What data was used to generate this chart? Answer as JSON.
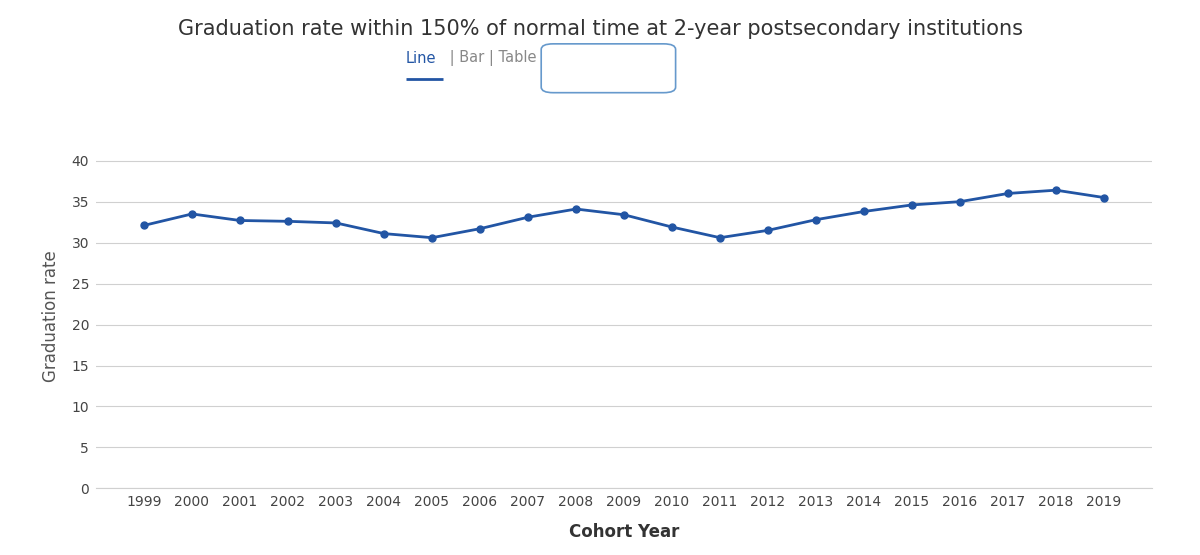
{
  "title": "Graduation rate within 150% of normal time at 2-year postsecondary institutions",
  "xlabel": "Cohort Year",
  "ylabel": "Graduation rate",
  "line_color": "#2255a4",
  "marker_color": "#2255a4",
  "background_color": "#ffffff",
  "grid_color": "#d0d0d0",
  "years": [
    1999,
    2000,
    2001,
    2002,
    2003,
    2004,
    2005,
    2006,
    2007,
    2008,
    2009,
    2010,
    2011,
    2012,
    2013,
    2014,
    2015,
    2016,
    2017,
    2018,
    2019
  ],
  "values": [
    32.1,
    33.5,
    32.7,
    32.6,
    32.4,
    31.1,
    30.6,
    31.7,
    33.1,
    34.1,
    33.4,
    31.9,
    30.6,
    31.5,
    32.8,
    33.8,
    34.6,
    35.0,
    36.0,
    36.4,
    35.5
  ],
  "ylim": [
    0,
    42
  ],
  "yticks": [
    0,
    5,
    10,
    15,
    20,
    25,
    30,
    35,
    40
  ],
  "title_fontsize": 15,
  "axis_label_fontsize": 12,
  "tick_fontsize": 10,
  "line_width": 2.0,
  "marker_size": 5,
  "subtitle_line_color": "#2255a4",
  "subtitle_sep_color": "#888888",
  "modify_years_border_color": "#6699cc"
}
